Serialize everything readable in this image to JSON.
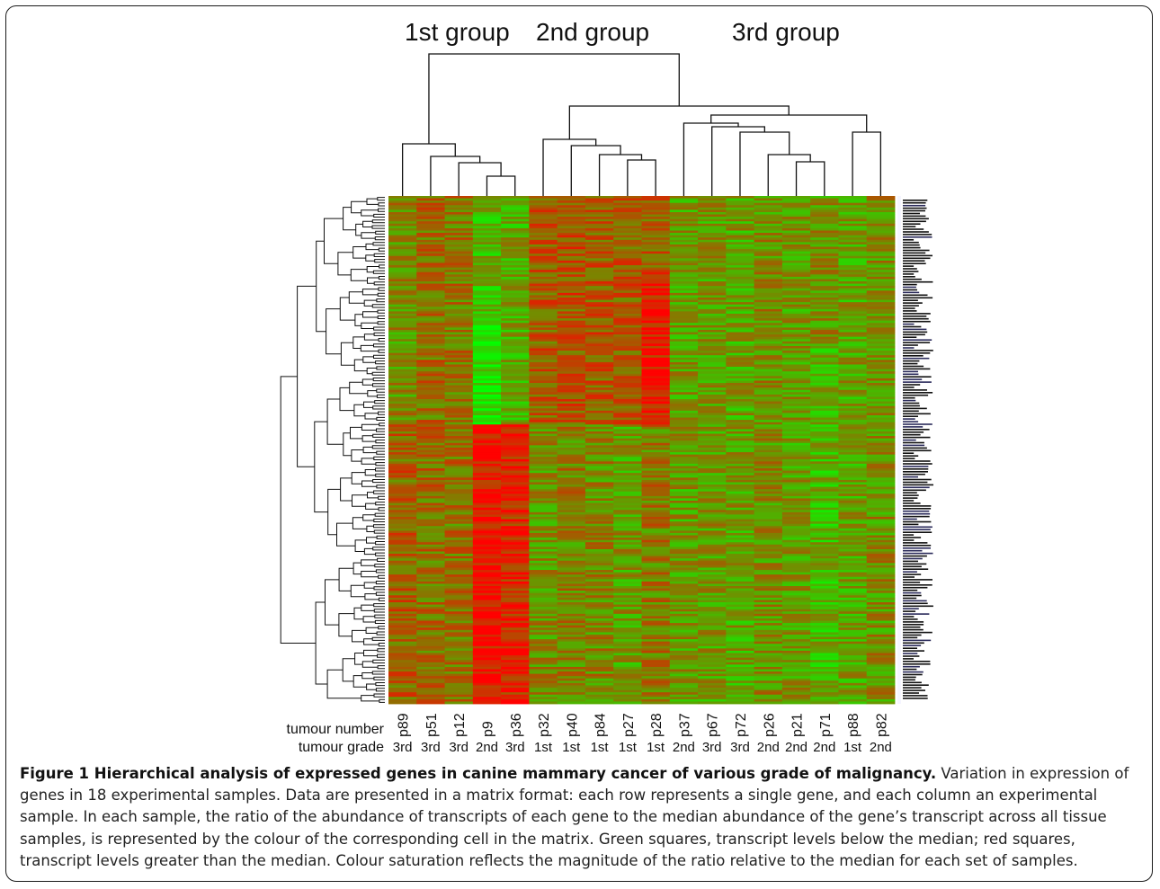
{
  "chart_data": {
    "type": "heatmap",
    "group_labels": [
      "1st group",
      "2nd group",
      "3rd group"
    ],
    "row_headers": {
      "tumour_number": "tumour number",
      "tumour_grade": "tumour grade"
    },
    "samples": [
      "p89",
      "p51",
      "p12",
      "p9",
      "p36",
      "p32",
      "p40",
      "p84",
      "p27",
      "p28",
      "p37",
      "p67",
      "p72",
      "p26",
      "p21",
      "p71",
      "p88",
      "p82"
    ],
    "grades": [
      "3rd",
      "3rd",
      "3rd",
      "2nd",
      "3rd",
      "1st",
      "1st",
      "1st",
      "1st",
      "1st",
      "2nd",
      "3rd",
      "3rd",
      "2nd",
      "2nd",
      "2nd",
      "1st",
      "2nd"
    ],
    "colors": {
      "low": "#00ff00",
      "mid": "#808000",
      "high": "#ff0000"
    }
  },
  "caption": {
    "title": "Figure 1 Hierarchical analysis of expressed genes in canine mammary cancer of various grade of malignancy.",
    "body": " Variation in expression of genes in 18 experimental samples. Data are presented in a matrix format: each row represents a single gene, and each column an experimental sample. In each sample, the ratio of the abundance of transcripts of each gene to the median abundance of the gene’s transcript across all tissue samples, is represented by the colour of the corresponding cell in the matrix. Green squares, transcript levels below the median; red squares, transcript levels greater than the median. Colour saturation reflects the magnitude of the ratio relative to the median for each set of samples."
  }
}
